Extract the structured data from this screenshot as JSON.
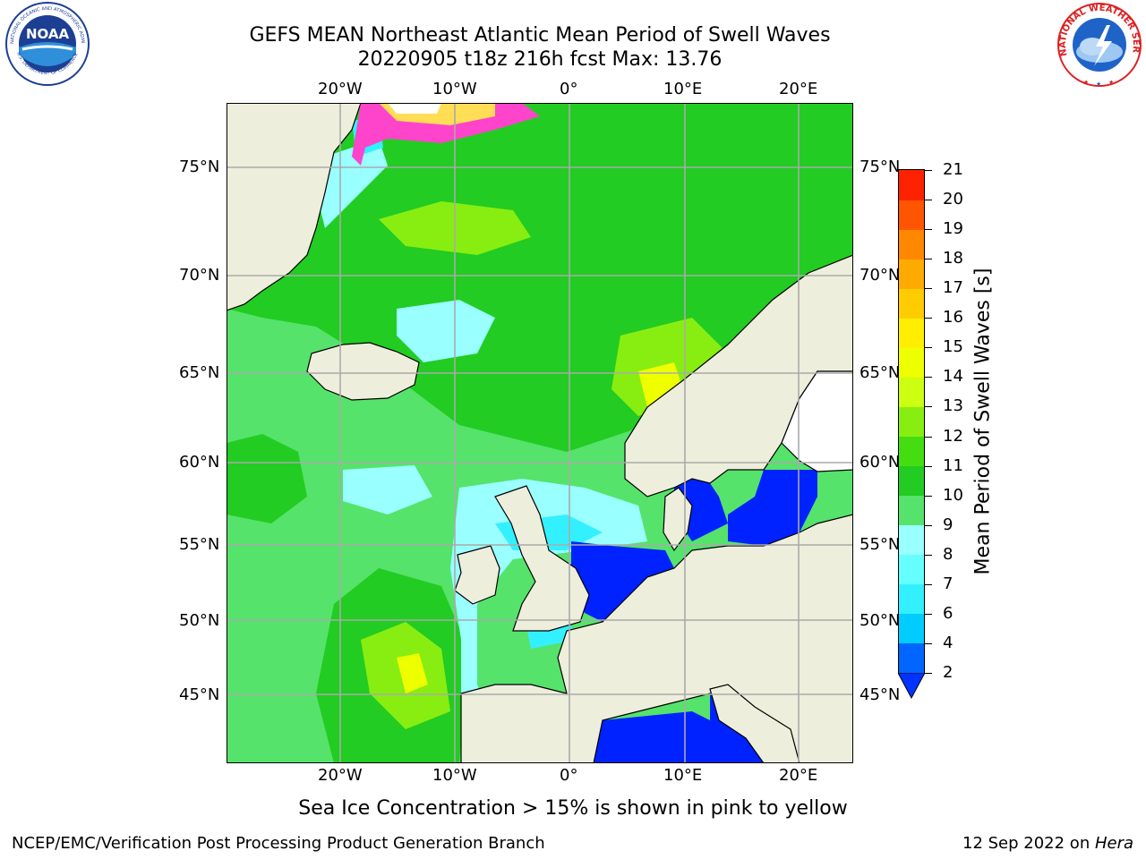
{
  "title": {
    "line1": "GEFS MEAN Northeast Atlantic Mean Period of Swell Waves",
    "line2": "20220905 t18z 216h fcst   Max: 13.76"
  },
  "map": {
    "lon_labels": [
      "20°W",
      "10°W",
      "0°",
      "10°E",
      "20°E"
    ],
    "lat_labels": [
      "75°N",
      "70°N",
      "65°N",
      "60°N",
      "55°N",
      "50°N",
      "45°N"
    ]
  },
  "colorbar": {
    "title": "Mean Period of Swell Waves [s]",
    "ticks": [
      "2",
      "4",
      "6",
      "7",
      "8",
      "9",
      "10",
      "11",
      "12",
      "13",
      "14",
      "15",
      "16",
      "17",
      "18",
      "19",
      "20",
      "21"
    ],
    "colors": [
      "#0066ff",
      "#00ccff",
      "#33f0ff",
      "#66ffff",
      "#99ffff",
      "#55e36b",
      "#22cc22",
      "#44dd11",
      "#88ee11",
      "#ccff11",
      "#eeff00",
      "#ffee00",
      "#ffcc00",
      "#ffaa00",
      "#ff8800",
      "#ff5500",
      "#ff2200"
    ],
    "extend_color": "#0033ff"
  },
  "colors": {
    "land": "#eeeedd",
    "low_period": "#0022ff",
    "sea_ice": "#ff44cc"
  },
  "caption": "Sea Ice Concentration > 15% is shown in pink to yellow",
  "footer": {
    "left": "NCEP/EMC/Verification Post Processing Product Generation Branch",
    "date": "12 Sep 2022 on ",
    "host": "Hera"
  },
  "logos": {
    "noaa_text": "NOAA",
    "noaa_ring": "NATIONAL OCEANIC AND ATMOSPHERIC ADMINISTRATION",
    "noaa_ring_bottom": "U.S. DEPARTMENT OF COMMERCE",
    "nws_ring": "NATIONAL WEATHER SERVICE"
  }
}
